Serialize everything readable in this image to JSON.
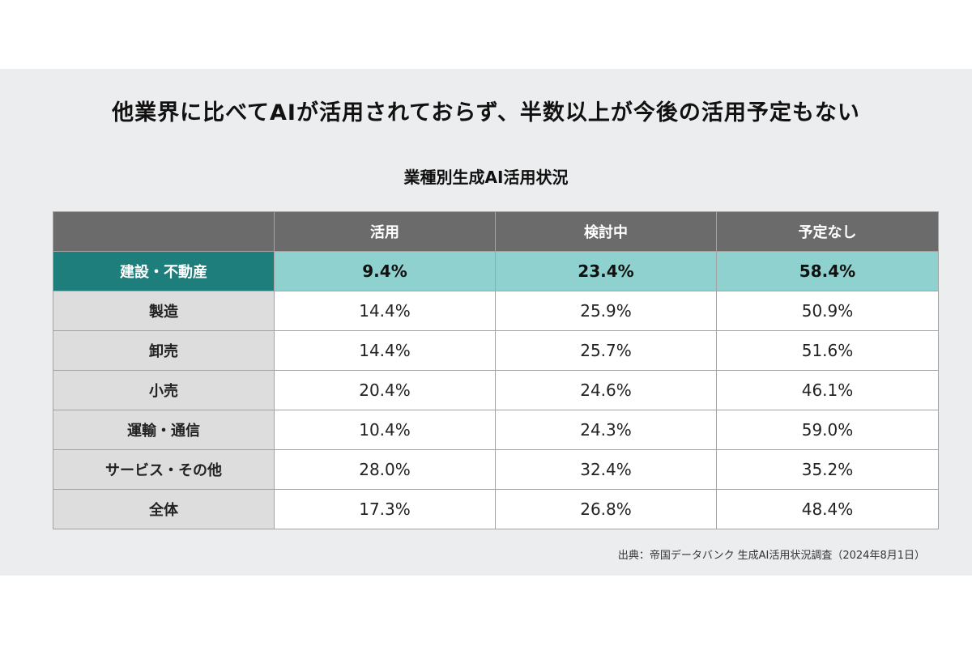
{
  "headline": "他業界に比べてAIが活用されておらず、半数以上が今後の活用予定もない",
  "source": "出典：帝国データバンク 生成AI活用状況調査（2024年8月1日）",
  "colors": {
    "panel_background": "#ecedee",
    "header_background": "#6b6b6b",
    "highlight_label": "#1e7e7c",
    "highlight_values": "#8fd1cf"
  },
  "chart_data": {
    "type": "table",
    "title": "業種別生成AI活用状況",
    "columns": [
      "",
      "活用",
      "検討中",
      "予定なし"
    ],
    "rows": [
      {
        "label": "建設・不動産",
        "values": [
          "9.4%",
          "23.4%",
          "58.4%"
        ],
        "highlight": true
      },
      {
        "label": "製造",
        "values": [
          "14.4%",
          "25.9%",
          "50.9%"
        ]
      },
      {
        "label": "卸売",
        "values": [
          "14.4%",
          "25.7%",
          "51.6%"
        ]
      },
      {
        "label": "小売",
        "values": [
          "20.4%",
          "24.6%",
          "46.1%"
        ]
      },
      {
        "label": "運輸・通信",
        "values": [
          "10.4%",
          "24.3%",
          "59.0%"
        ]
      },
      {
        "label": "サービス・その他",
        "values": [
          "28.0%",
          "32.4%",
          "35.2%"
        ]
      },
      {
        "label": "全体",
        "values": [
          "17.3%",
          "26.8%",
          "48.4%"
        ]
      }
    ]
  }
}
